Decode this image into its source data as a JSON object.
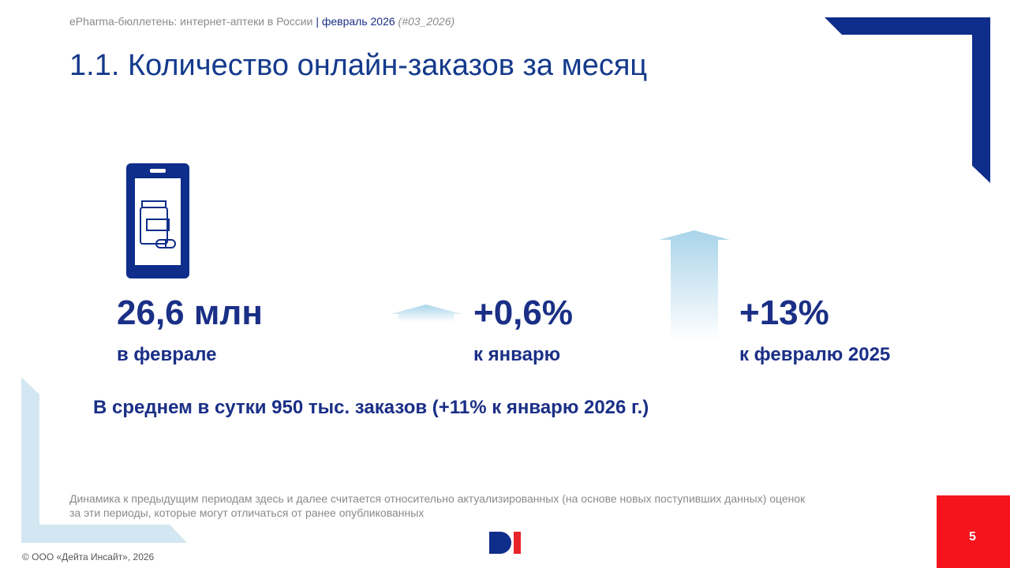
{
  "header": {
    "publication": "ePharma-бюллетень: интернет-аптеки в России",
    "separator": "|",
    "period": "февраль 2026",
    "issue": "(#03_2026)"
  },
  "title": "1.1. Количество онлайн-заказов за месяц",
  "metrics": [
    {
      "value": "26,6 млн",
      "label": "в феврале"
    },
    {
      "value": "+0,6%",
      "label": "к январю"
    },
    {
      "value": "+13%",
      "label": "к февралю 2025"
    }
  ],
  "summary": "В среднем в сутки 950 тыс. заказов (+11% к январю 2026 г.)",
  "note": [
    "Динамика к предыдущим периодам здесь и далее считается относительно актуализированных (на основе новых поступивших данных) оценок",
    "за эти периоды, которые могут отличаться от ранее опубликованных"
  ],
  "footer": {
    "copyright": "© ООО «Дейта Инсайт», 2026",
    "page": "5"
  }
}
